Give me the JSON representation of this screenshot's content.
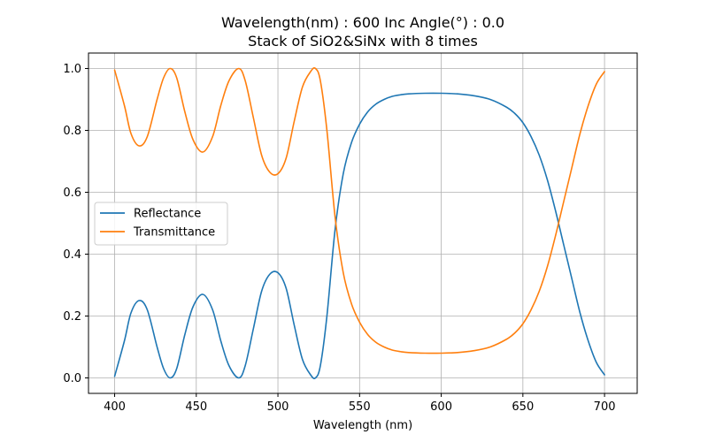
{
  "chart_data": {
    "type": "line",
    "title": "Wavelength(nm) : 600   Inc Angle(°) : 0.0",
    "subtitle": "Stack of SiO2&SiNx with 8 times",
    "xlabel": "Wavelength (nm)",
    "ylabel": "",
    "xlim": [
      384,
      720
    ],
    "ylim": [
      -0.05,
      1.05
    ],
    "xticks": [
      400,
      450,
      500,
      550,
      600,
      650,
      700
    ],
    "yticks": [
      0.0,
      0.2,
      0.4,
      0.6,
      0.8,
      1.0
    ],
    "grid": true,
    "legend": "center-left",
    "series": [
      {
        "name": "Reflectance",
        "color": "#1f77b4",
        "x": [
          400,
          406,
          410,
          415,
          420,
          426,
          430,
          434,
          438,
          443,
          448,
          454,
          460,
          465,
          470,
          476,
          480,
          485,
          490,
          495,
          500,
          505,
          510,
          515,
          520,
          523,
          526,
          530,
          535,
          540,
          545,
          550,
          555,
          560,
          565,
          570,
          575,
          580,
          590,
          600,
          610,
          620,
          630,
          640,
          645,
          650,
          655,
          660,
          665,
          670,
          675,
          680,
          685,
          690,
          695,
          700
        ],
        "y": [
          0.005,
          0.12,
          0.21,
          0.25,
          0.22,
          0.1,
          0.03,
          0.0,
          0.03,
          0.14,
          0.23,
          0.27,
          0.22,
          0.12,
          0.04,
          0.0,
          0.04,
          0.16,
          0.28,
          0.335,
          0.34,
          0.29,
          0.17,
          0.06,
          0.01,
          0.0,
          0.04,
          0.2,
          0.48,
          0.66,
          0.76,
          0.82,
          0.86,
          0.885,
          0.9,
          0.91,
          0.915,
          0.918,
          0.92,
          0.92,
          0.918,
          0.912,
          0.9,
          0.875,
          0.855,
          0.825,
          0.78,
          0.72,
          0.64,
          0.54,
          0.43,
          0.32,
          0.21,
          0.12,
          0.05,
          0.01
        ]
      },
      {
        "name": "Transmittance",
        "color": "#ff7f0e",
        "x": [
          400,
          406,
          410,
          415,
          420,
          426,
          430,
          434,
          438,
          443,
          448,
          454,
          460,
          465,
          470,
          476,
          480,
          485,
          490,
          495,
          500,
          505,
          510,
          515,
          520,
          523,
          526,
          530,
          535,
          540,
          545,
          550,
          555,
          560,
          565,
          570,
          575,
          580,
          590,
          600,
          610,
          620,
          630,
          640,
          645,
          650,
          655,
          660,
          665,
          670,
          675,
          680,
          685,
          690,
          695,
          700
        ],
        "y": [
          0.995,
          0.88,
          0.79,
          0.75,
          0.78,
          0.9,
          0.97,
          1.0,
          0.97,
          0.86,
          0.77,
          0.73,
          0.78,
          0.88,
          0.96,
          1.0,
          0.96,
          0.84,
          0.72,
          0.665,
          0.66,
          0.71,
          0.83,
          0.94,
          0.99,
          1.0,
          0.96,
          0.8,
          0.52,
          0.34,
          0.24,
          0.18,
          0.14,
          0.115,
          0.1,
          0.09,
          0.085,
          0.082,
          0.08,
          0.08,
          0.082,
          0.088,
          0.1,
          0.125,
          0.145,
          0.175,
          0.22,
          0.28,
          0.36,
          0.46,
          0.57,
          0.68,
          0.79,
          0.88,
          0.95,
          0.99
        ]
      }
    ]
  }
}
